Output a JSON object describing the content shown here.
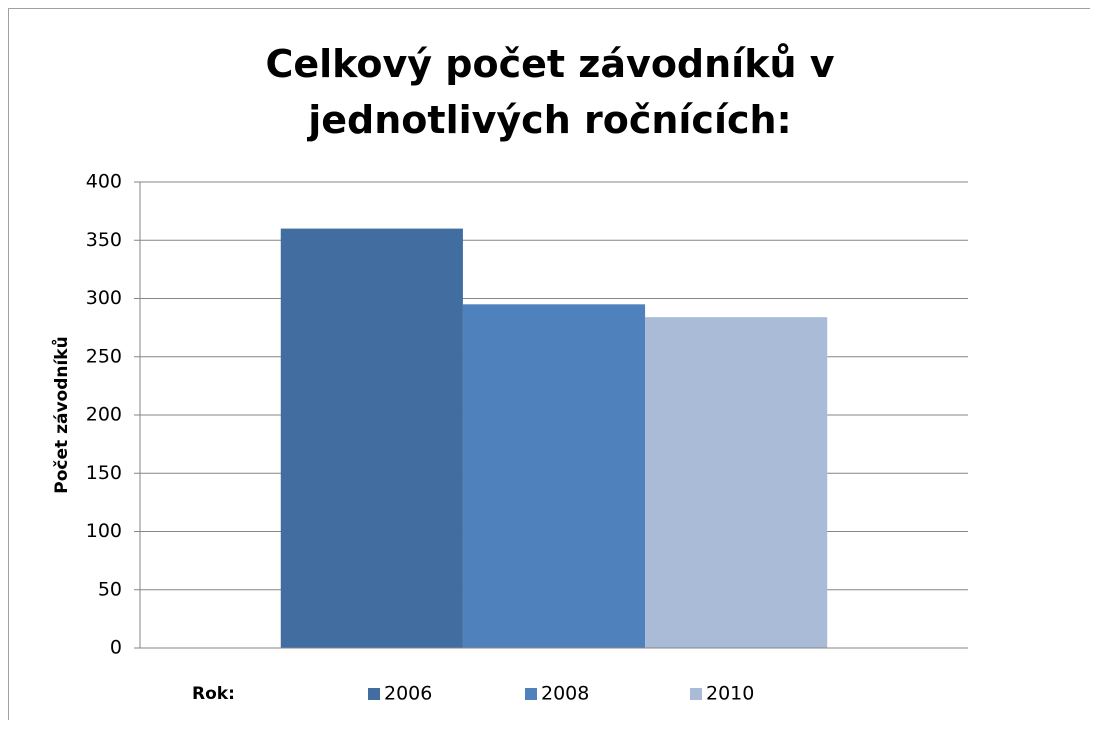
{
  "chart_data": {
    "type": "bar",
    "title": "Celkový počet závodníků v jednotlivých ročnících:",
    "y_label": "Počet závodníků",
    "legend_title": "Rok:",
    "categories": [
      null
    ],
    "series": [
      {
        "name": "2006",
        "color": "#426da0",
        "values": [
          360
        ]
      },
      {
        "name": "2008",
        "color": "#4f81bd",
        "values": [
          295
        ]
      },
      {
        "name": "2010",
        "color": "#aabbd8",
        "values": [
          284
        ]
      }
    ],
    "ylim": [
      0,
      400
    ],
    "yticks": [
      0,
      50,
      100,
      150,
      200,
      250,
      300,
      350,
      400
    ],
    "grid": true,
    "legend": "bottom"
  }
}
